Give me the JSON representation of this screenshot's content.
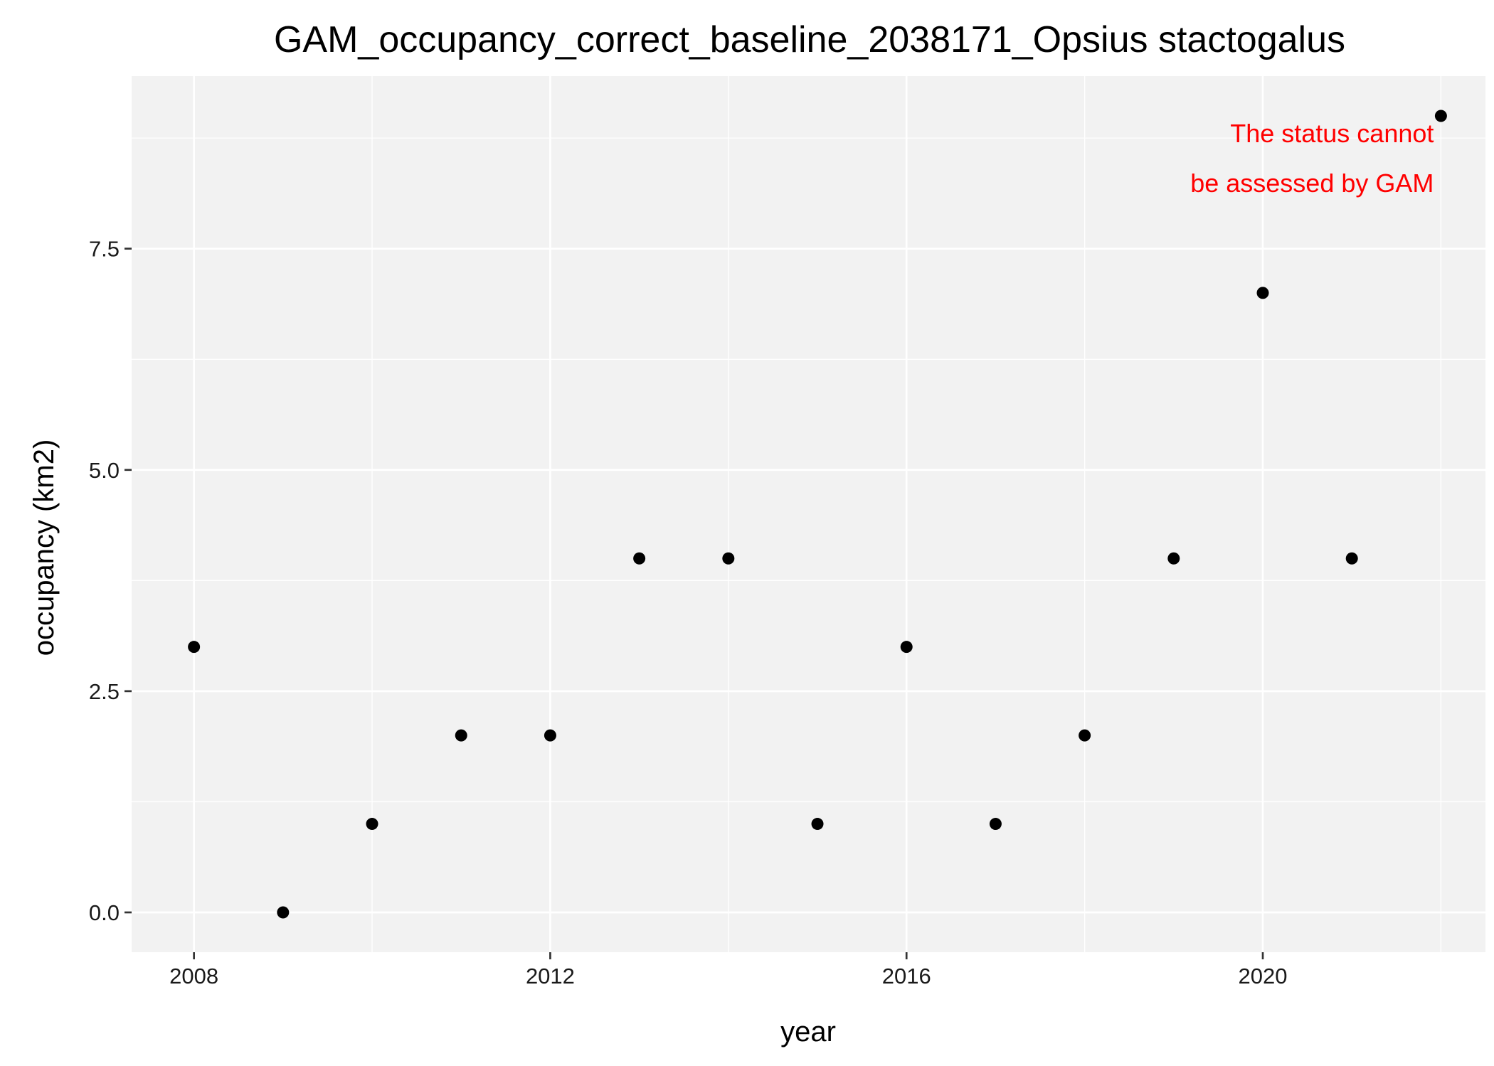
{
  "chart_data": {
    "type": "scatter",
    "title": "GAM_occupancy_correct_baseline_2038171_Opsius stactogalus",
    "xlabel": "year",
    "ylabel": "occupancy (km2)",
    "xlim": [
      2007.3,
      2022.5
    ],
    "ylim": [
      -0.45,
      9.45
    ],
    "x_ticks": [
      2008,
      2012,
      2016,
      2020
    ],
    "x_tick_labels": [
      "2008",
      "2012",
      "2016",
      "2020"
    ],
    "y_ticks": [
      0,
      2.5,
      5,
      7.5
    ],
    "y_tick_labels": [
      "0.0",
      "2.5",
      "5.0",
      "7.5"
    ],
    "grid": true,
    "legend": "none",
    "point_color": "#000000",
    "panel_background": "#f2f2f2",
    "gridline_color": "#ffffff",
    "points": [
      {
        "x": 2008,
        "y": 3
      },
      {
        "x": 2009,
        "y": 0
      },
      {
        "x": 2010,
        "y": 1
      },
      {
        "x": 2011,
        "y": 2
      },
      {
        "x": 2012,
        "y": 2
      },
      {
        "x": 2013,
        "y": 4
      },
      {
        "x": 2014,
        "y": 4
      },
      {
        "x": 2015,
        "y": 1
      },
      {
        "x": 2016,
        "y": 3
      },
      {
        "x": 2017,
        "y": 1
      },
      {
        "x": 2018,
        "y": 2
      },
      {
        "x": 2019,
        "y": 4
      },
      {
        "x": 2020,
        "y": 7
      },
      {
        "x": 2021,
        "y": 4
      },
      {
        "x": 2022,
        "y": 9
      }
    ],
    "annotation": {
      "lines": [
        "The status cannot",
        "be assessed by GAM"
      ],
      "color": "#ff0000",
      "anchor_x": 2022,
      "anchor_y": 8.8,
      "align": "right"
    }
  }
}
